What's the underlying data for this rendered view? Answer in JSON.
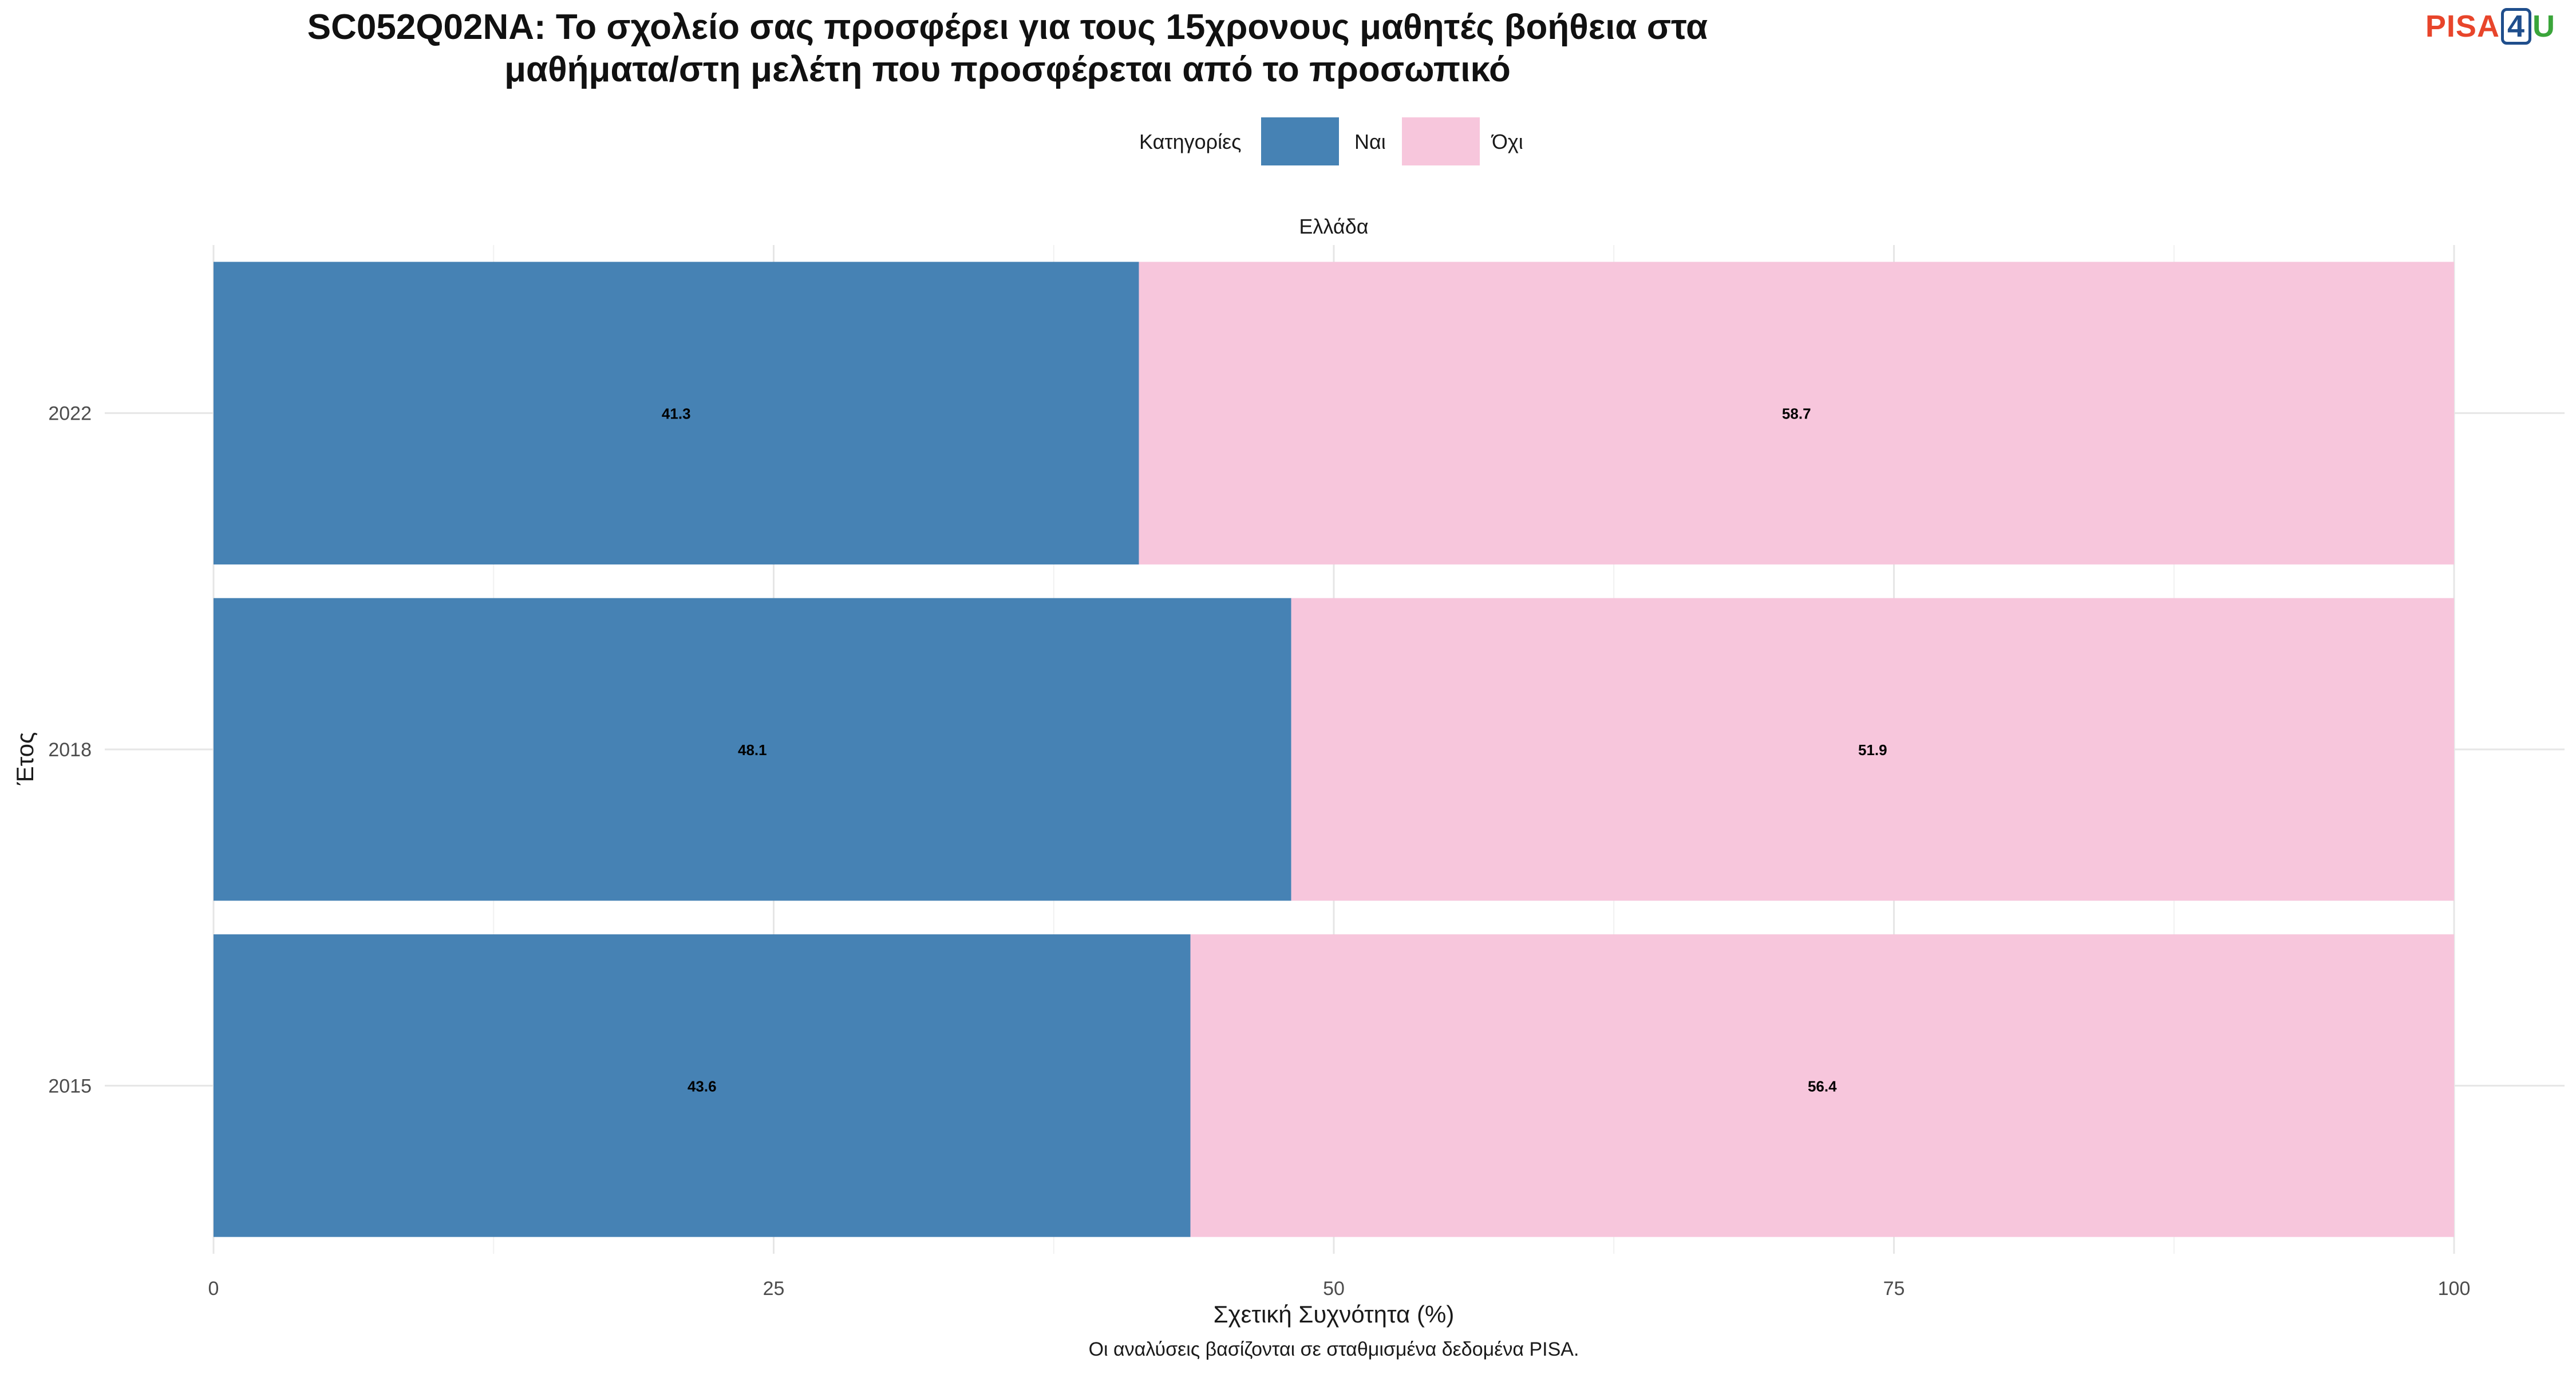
{
  "chart_data": {
    "type": "bar",
    "orientation": "horizontal",
    "stacked": true,
    "title_line1": "SC052Q02NA: Το σχολείο σας προσφέρει για τους 15χρονους μαθητές βοήθεια στα",
    "title_line2": "μαθήματα/στη μελέτη που προσφέρεται από το προσωπικό",
    "facet_label": "Ελλάδα",
    "xlabel": "Σχετική Συχνότητα (%)",
    "ylabel": "Έτος",
    "caption": "Οι αναλύσεις βασίζονται σε σταθμισμένα δεδομένα PISA.",
    "legend_title": "Κατηγορίες",
    "legend_position": "top",
    "grid": true,
    "xlim": [
      0,
      100
    ],
    "xticks": [
      "0",
      "25",
      "50",
      "75",
      "100"
    ],
    "categories": [
      "2022",
      "2018",
      "2015"
    ],
    "series": [
      {
        "name": "Ναι",
        "color": "#4682b4",
        "values": [
          41.3,
          48.1,
          43.6
        ]
      },
      {
        "name": "Όχι",
        "color": "#f7c6dc",
        "values": [
          58.7,
          51.9,
          56.4
        ]
      }
    ]
  },
  "logo": {
    "part1": "PISA",
    "part2": "4",
    "part3": "U"
  }
}
